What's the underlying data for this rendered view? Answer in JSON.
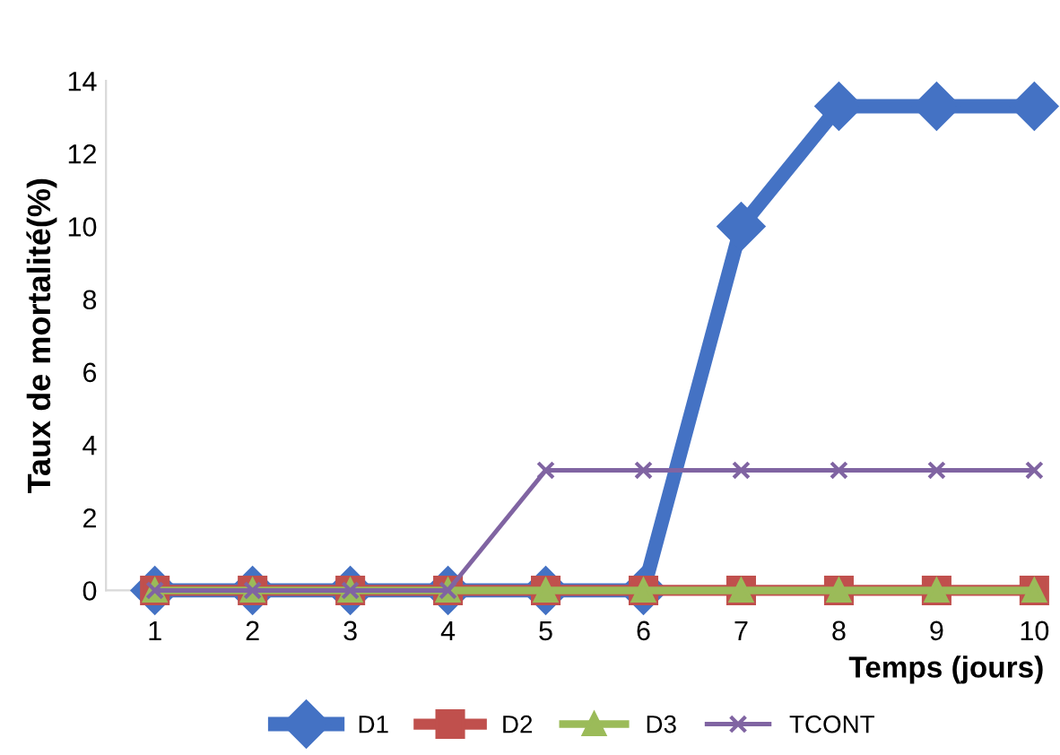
{
  "chart_data": {
    "type": "line",
    "xlabel": "Temps (jours)",
    "ylabel": "Taux de mortalité(%)",
    "categories": [
      "1",
      "2",
      "3",
      "4",
      "5",
      "6",
      "7",
      "8",
      "9",
      "10"
    ],
    "series": [
      {
        "name": "D1",
        "color": "#4472c4",
        "marker": "diamond",
        "values": [
          0,
          0,
          0,
          0,
          0,
          0,
          10,
          13.3,
          13.3,
          13.3
        ]
      },
      {
        "name": "D2",
        "color": "#c0504d",
        "marker": "square",
        "values": [
          0,
          0,
          0,
          0,
          0,
          0,
          0,
          0,
          0,
          0
        ]
      },
      {
        "name": "D3",
        "color": "#9bbb59",
        "marker": "triangle",
        "values": [
          0,
          0,
          0,
          0,
          0,
          0,
          0,
          0,
          0,
          0
        ]
      },
      {
        "name": "TCONT",
        "color": "#8064a2",
        "marker": "cross",
        "values": [
          0,
          0,
          0,
          0,
          3.3,
          3.3,
          3.3,
          3.3,
          3.3,
          3.3
        ]
      }
    ],
    "ylim": [
      0,
      14
    ],
    "yticks": [
      0,
      2,
      4,
      6,
      8,
      10,
      12,
      14
    ],
    "grid": false,
    "legend": "bottom",
    "line_style": "solid"
  }
}
